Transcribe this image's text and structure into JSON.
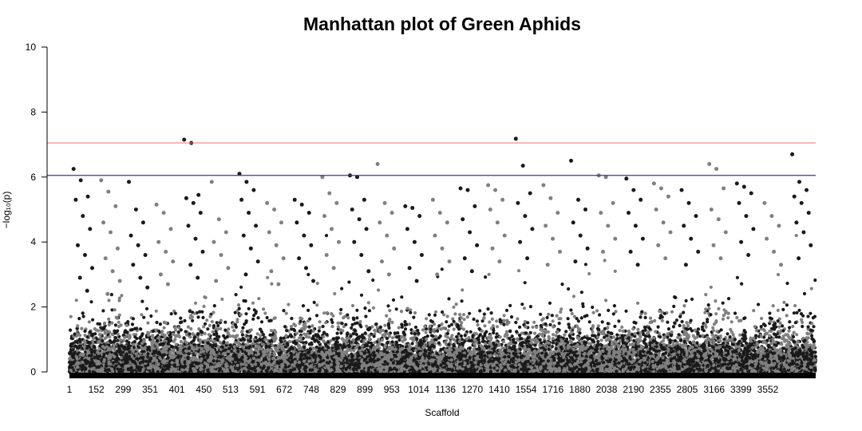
{
  "chart_data": {
    "type": "scatter",
    "title": "Manhattan plot of Green Aphids",
    "xlabel": "Scaffold",
    "ylabel": "−log₁₀(p)",
    "ylim": [
      0,
      10
    ],
    "y_ticks": [
      0,
      2,
      4,
      6,
      8,
      10
    ],
    "x_tick_labels": [
      "1",
      "152",
      "299",
      "351",
      "401",
      "450",
      "513",
      "591",
      "672",
      "748",
      "829",
      "899",
      "953",
      "1014",
      "1136",
      "1270",
      "1410",
      "1554",
      "1716",
      "1880",
      "2038",
      "2190",
      "2355",
      "2805",
      "3166",
      "3399",
      "3552"
    ],
    "thresholds": [
      {
        "value": 7.05,
        "color": "#f08080"
      },
      {
        "value": 6.05,
        "color": "#3a3a8c"
      }
    ],
    "colors": {
      "odd": "#1a1a1a",
      "even": "#808080"
    },
    "grid": false,
    "legend": "none",
    "series": [
      {
        "values": [
          6.25,
          5.9,
          5.4,
          5.3,
          4.8,
          4.4,
          3.9,
          3.6,
          3.2,
          2.9,
          2.5
        ]
      },
      {
        "values": [
          5.9,
          5.55,
          5.1,
          4.6,
          4.3,
          3.8,
          3.5,
          3.1,
          2.8,
          2.4
        ]
      },
      {
        "values": [
          5.85,
          5.0,
          4.6,
          4.2,
          3.9,
          3.6,
          3.3,
          2.9,
          2.6
        ]
      },
      {
        "values": [
          5.15,
          4.9,
          4.4,
          4.0,
          3.7,
          3.4,
          3.0,
          2.7
        ]
      },
      {
        "values": [
          7.15,
          7.05,
          5.45,
          5.35,
          5.2,
          4.9,
          4.5,
          4.1,
          3.7,
          3.3,
          2.9
        ]
      },
      {
        "values": [
          5.85,
          4.7,
          4.3,
          4.0,
          3.6,
          3.2,
          2.8
        ]
      },
      {
        "values": [
          6.1,
          5.85,
          5.6,
          5.3,
          4.9,
          4.5,
          4.2,
          3.8,
          3.4,
          3.0
        ]
      },
      {
        "values": [
          5.2,
          5.0,
          4.6,
          4.3,
          3.9,
          3.5,
          3.1,
          2.7
        ]
      },
      {
        "values": [
          5.3,
          5.15,
          4.9,
          4.6,
          4.2,
          3.9,
          3.5,
          3.2,
          2.8
        ]
      },
      {
        "values": [
          6.0,
          5.5,
          5.2,
          4.8,
          4.4,
          4.0,
          3.6,
          3.2
        ]
      },
      {
        "values": [
          6.05,
          6.0,
          5.3,
          5.0,
          4.7,
          4.4,
          4.0,
          3.6,
          3.1
        ]
      },
      {
        "values": [
          6.4,
          5.2,
          4.9,
          4.6,
          4.2,
          3.8,
          3.4,
          3.0
        ]
      },
      {
        "values": [
          5.1,
          5.05,
          4.8,
          4.4,
          4.0,
          3.6,
          3.2,
          2.8
        ]
      },
      {
        "values": [
          5.3,
          4.9,
          4.6,
          4.2,
          3.8,
          3.4,
          3.0
        ]
      },
      {
        "values": [
          5.65,
          5.6,
          5.1,
          4.7,
          4.3,
          3.9,
          3.5,
          3.1
        ]
      },
      {
        "values": [
          5.75,
          5.6,
          5.3,
          5.0,
          4.6,
          4.2,
          3.8,
          3.4
        ]
      },
      {
        "values": [
          7.18,
          6.35,
          5.5,
          5.2,
          4.8,
          4.4,
          4.0,
          3.5
        ]
      },
      {
        "values": [
          5.75,
          5.35,
          4.9,
          4.5,
          4.1,
          3.7,
          3.3
        ]
      },
      {
        "values": [
          6.5,
          5.3,
          5.0,
          4.6,
          4.2,
          3.8,
          3.4
        ]
      },
      {
        "values": [
          6.05,
          6.0,
          5.2,
          4.9,
          4.5,
          4.1,
          3.7
        ]
      },
      {
        "values": [
          5.95,
          5.6,
          5.3,
          4.9,
          4.5,
          4.1,
          3.7,
          3.3
        ]
      },
      {
        "values": [
          5.8,
          5.65,
          5.4,
          5.0,
          4.6,
          4.3,
          3.9,
          3.5
        ]
      },
      {
        "values": [
          5.6,
          5.2,
          4.8,
          4.5,
          4.1,
          3.7,
          3.3
        ]
      },
      {
        "values": [
          6.4,
          6.25,
          5.65,
          5.0,
          4.7,
          4.3,
          3.9,
          3.5
        ]
      },
      {
        "values": [
          5.8,
          5.7,
          5.5,
          5.2,
          4.8,
          4.4,
          4.0,
          3.6
        ]
      },
      {
        "values": [
          5.2,
          4.8,
          4.5,
          4.1,
          3.7,
          3.3
        ]
      },
      {
        "values": [
          6.7,
          5.85,
          5.6,
          5.4,
          5.2,
          4.9,
          4.6,
          4.3,
          3.9,
          3.5
        ]
      }
    ]
  }
}
